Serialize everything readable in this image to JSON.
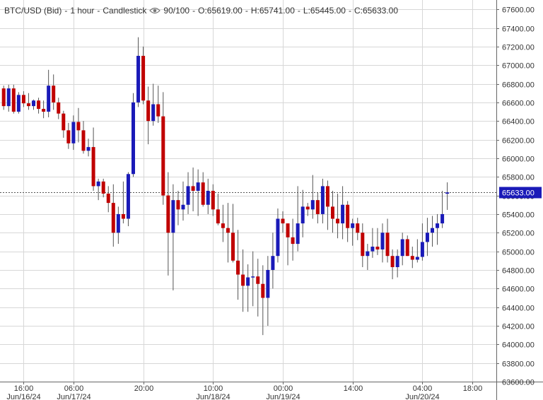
{
  "legend": {
    "symbol": "BTC/USD (Bid)",
    "interval": "1 hour",
    "style": "Candlestick",
    "separator": "-",
    "visibility": "90/100",
    "open": "O:65619.00",
    "high": "H:65741.00",
    "low": "L:65445.00",
    "close": "C:65633.00",
    "eye_icon": "eye-icon"
  },
  "colors": {
    "up": "#1a1ab8",
    "down": "#c00000",
    "wick": "#555555",
    "grid": "#d7d7d7",
    "axis": "#666666",
    "price_tag": "#1a1ab8",
    "background": "#ffffff"
  },
  "chart_data": {
    "type": "candlestick",
    "ylim": [
      63600,
      67700
    ],
    "y_ticks": [
      63600,
      63800,
      64000,
      64200,
      64400,
      64600,
      64800,
      65000,
      65200,
      65400,
      65600,
      65800,
      66000,
      66200,
      66400,
      66600,
      66800,
      67000,
      67200,
      67400,
      67600
    ],
    "y_tick_labels": [
      "63600.00",
      "63800.00",
      "64000.00",
      "64200.00",
      "64400.00",
      "64600.00",
      "64800.00",
      "65000.00",
      "65200.00",
      "65400.00",
      "65600.00",
      "65800.00",
      "66000.00",
      "66200.00",
      "66400.00",
      "66600.00",
      "66800.00",
      "67000.00",
      "67200.00",
      "67400.00",
      "67600.00"
    ],
    "x_ticks": [
      {
        "index": 4,
        "time": "16:00",
        "date": "Jun/16/24"
      },
      {
        "index": 14,
        "time": "06:00",
        "date": "Jun/17/24"
      },
      {
        "index": 28,
        "time": "20:00",
        "date": ""
      },
      {
        "index": 42,
        "time": "10:00",
        "date": "Jun/18/24"
      },
      {
        "index": 56,
        "time": "00:00",
        "date": "Jun/19/24"
      },
      {
        "index": 70,
        "time": "14:00",
        "date": ""
      },
      {
        "index": 84,
        "time": "04:00",
        "date": "Jun/20/24"
      },
      {
        "index": 94,
        "time": "18:00",
        "date": ""
      }
    ],
    "last_price": 65633.0,
    "last_price_label": "65633.00",
    "candles": [
      {
        "o": 66750,
        "h": 66780,
        "l": 66520,
        "c": 66560
      },
      {
        "o": 66560,
        "h": 66790,
        "l": 66500,
        "c": 66750
      },
      {
        "o": 66750,
        "h": 66790,
        "l": 66480,
        "c": 66500
      },
      {
        "o": 66500,
        "h": 66710,
        "l": 66480,
        "c": 66680
      },
      {
        "o": 66680,
        "h": 66720,
        "l": 66550,
        "c": 66590
      },
      {
        "o": 66590,
        "h": 66700,
        "l": 66520,
        "c": 66560
      },
      {
        "o": 66560,
        "h": 66630,
        "l": 66520,
        "c": 66620
      },
      {
        "o": 66620,
        "h": 66650,
        "l": 66480,
        "c": 66530
      },
      {
        "o": 66530,
        "h": 66620,
        "l": 66430,
        "c": 66500
      },
      {
        "o": 66500,
        "h": 66950,
        "l": 66440,
        "c": 66780
      },
      {
        "o": 66780,
        "h": 66900,
        "l": 66520,
        "c": 66600
      },
      {
        "o": 66600,
        "h": 66650,
        "l": 66420,
        "c": 66480
      },
      {
        "o": 66480,
        "h": 66510,
        "l": 66220,
        "c": 66300
      },
      {
        "o": 66300,
        "h": 66380,
        "l": 66100,
        "c": 66160
      },
      {
        "o": 66160,
        "h": 66460,
        "l": 66090,
        "c": 66390
      },
      {
        "o": 66390,
        "h": 66540,
        "l": 66170,
        "c": 66300
      },
      {
        "o": 66300,
        "h": 66400,
        "l": 66050,
        "c": 66080
      },
      {
        "o": 66080,
        "h": 66210,
        "l": 66020,
        "c": 66120
      },
      {
        "o": 66120,
        "h": 66330,
        "l": 65650,
        "c": 65700
      },
      {
        "o": 65700,
        "h": 65780,
        "l": 65550,
        "c": 65750
      },
      {
        "o": 65750,
        "h": 65780,
        "l": 65580,
        "c": 65620
      },
      {
        "o": 65620,
        "h": 65700,
        "l": 65420,
        "c": 65520
      },
      {
        "o": 65520,
        "h": 65720,
        "l": 65050,
        "c": 65200
      },
      {
        "o": 65200,
        "h": 65480,
        "l": 65080,
        "c": 65400
      },
      {
        "o": 65400,
        "h": 65750,
        "l": 65300,
        "c": 65350
      },
      {
        "o": 65350,
        "h": 65850,
        "l": 65270,
        "c": 65830
      },
      {
        "o": 65830,
        "h": 66700,
        "l": 65800,
        "c": 66600
      },
      {
        "o": 66600,
        "h": 67300,
        "l": 66550,
        "c": 67100
      },
      {
        "o": 67100,
        "h": 67200,
        "l": 66580,
        "c": 66620
      },
      {
        "o": 66620,
        "h": 66770,
        "l": 66150,
        "c": 66400
      },
      {
        "o": 66400,
        "h": 66800,
        "l": 66350,
        "c": 66580
      },
      {
        "o": 66580,
        "h": 66780,
        "l": 66380,
        "c": 66450
      },
      {
        "o": 66450,
        "h": 66710,
        "l": 65500,
        "c": 65600
      },
      {
        "o": 65600,
        "h": 65850,
        "l": 64740,
        "c": 65200
      },
      {
        "o": 65200,
        "h": 65720,
        "l": 64580,
        "c": 65550
      },
      {
        "o": 65550,
        "h": 65650,
        "l": 65280,
        "c": 65450
      },
      {
        "o": 65450,
        "h": 65750,
        "l": 65330,
        "c": 65500
      },
      {
        "o": 65500,
        "h": 65850,
        "l": 65400,
        "c": 65700
      },
      {
        "o": 65700,
        "h": 65900,
        "l": 65430,
        "c": 65650
      },
      {
        "o": 65650,
        "h": 65880,
        "l": 65380,
        "c": 65740
      },
      {
        "o": 65740,
        "h": 65850,
        "l": 65480,
        "c": 65500
      },
      {
        "o": 65500,
        "h": 65780,
        "l": 65400,
        "c": 65650
      },
      {
        "o": 65650,
        "h": 65720,
        "l": 65380,
        "c": 65450
      },
      {
        "o": 65450,
        "h": 65620,
        "l": 65280,
        "c": 65300
      },
      {
        "o": 65300,
        "h": 65500,
        "l": 65100,
        "c": 65250
      },
      {
        "o": 65250,
        "h": 65520,
        "l": 64880,
        "c": 65200
      },
      {
        "o": 65200,
        "h": 65510,
        "l": 64880,
        "c": 64900
      },
      {
        "o": 64900,
        "h": 65230,
        "l": 64480,
        "c": 64750
      },
      {
        "o": 64750,
        "h": 65020,
        "l": 64350,
        "c": 64630
      },
      {
        "o": 64630,
        "h": 64860,
        "l": 64350,
        "c": 64720
      },
      {
        "o": 64720,
        "h": 65000,
        "l": 64410,
        "c": 64730
      },
      {
        "o": 64730,
        "h": 64920,
        "l": 64300,
        "c": 64650
      },
      {
        "o": 64650,
        "h": 64850,
        "l": 64100,
        "c": 64500
      },
      {
        "o": 64500,
        "h": 64950,
        "l": 64200,
        "c": 64800
      },
      {
        "o": 64800,
        "h": 65200,
        "l": 64600,
        "c": 64950
      },
      {
        "o": 64950,
        "h": 65460,
        "l": 64880,
        "c": 65350
      },
      {
        "o": 65350,
        "h": 65430,
        "l": 65200,
        "c": 65300
      },
      {
        "o": 65300,
        "h": 65280,
        "l": 64850,
        "c": 65150
      },
      {
        "o": 65150,
        "h": 65350,
        "l": 64900,
        "c": 65080
      },
      {
        "o": 65080,
        "h": 65700,
        "l": 65000,
        "c": 65300
      },
      {
        "o": 65300,
        "h": 65660,
        "l": 65150,
        "c": 65480
      },
      {
        "o": 65480,
        "h": 65520,
        "l": 65380,
        "c": 65450
      },
      {
        "o": 65450,
        "h": 65820,
        "l": 65350,
        "c": 65550
      },
      {
        "o": 65550,
        "h": 65630,
        "l": 65300,
        "c": 65400
      },
      {
        "o": 65400,
        "h": 65780,
        "l": 65300,
        "c": 65700
      },
      {
        "o": 65700,
        "h": 65760,
        "l": 65230,
        "c": 65480
      },
      {
        "o": 65480,
        "h": 65650,
        "l": 65200,
        "c": 65350
      },
      {
        "o": 65350,
        "h": 65620,
        "l": 65140,
        "c": 65300
      },
      {
        "o": 65300,
        "h": 65700,
        "l": 65130,
        "c": 65500
      },
      {
        "o": 65500,
        "h": 65540,
        "l": 65100,
        "c": 65250
      },
      {
        "o": 65250,
        "h": 65350,
        "l": 65060,
        "c": 65300
      },
      {
        "o": 65300,
        "h": 65360,
        "l": 65120,
        "c": 65200
      },
      {
        "o": 65200,
        "h": 65300,
        "l": 64830,
        "c": 64950
      },
      {
        "o": 64950,
        "h": 65080,
        "l": 64800,
        "c": 65000
      },
      {
        "o": 65000,
        "h": 65250,
        "l": 64930,
        "c": 65050
      },
      {
        "o": 65050,
        "h": 65250,
        "l": 64960,
        "c": 65020
      },
      {
        "o": 65020,
        "h": 65300,
        "l": 64880,
        "c": 65200
      },
      {
        "o": 65200,
        "h": 65350,
        "l": 64880,
        "c": 64950
      },
      {
        "o": 64950,
        "h": 65020,
        "l": 64700,
        "c": 64830
      },
      {
        "o": 64830,
        "h": 65020,
        "l": 64720,
        "c": 64950
      },
      {
        "o": 64950,
        "h": 65200,
        "l": 64850,
        "c": 65130
      },
      {
        "o": 65130,
        "h": 65170,
        "l": 64950,
        "c": 64950
      },
      {
        "o": 64950,
        "h": 65050,
        "l": 64820,
        "c": 64910
      },
      {
        "o": 64910,
        "h": 65130,
        "l": 64880,
        "c": 64940
      },
      {
        "o": 64940,
        "h": 65300,
        "l": 64900,
        "c": 65100
      },
      {
        "o": 65100,
        "h": 65360,
        "l": 64950,
        "c": 65200
      },
      {
        "o": 65200,
        "h": 65380,
        "l": 65050,
        "c": 65250
      },
      {
        "o": 65250,
        "h": 65400,
        "l": 65070,
        "c": 65300
      },
      {
        "o": 65300,
        "h": 65650,
        "l": 65250,
        "c": 65400
      },
      {
        "o": 65619,
        "h": 65741,
        "l": 65445,
        "c": 65633
      }
    ]
  }
}
